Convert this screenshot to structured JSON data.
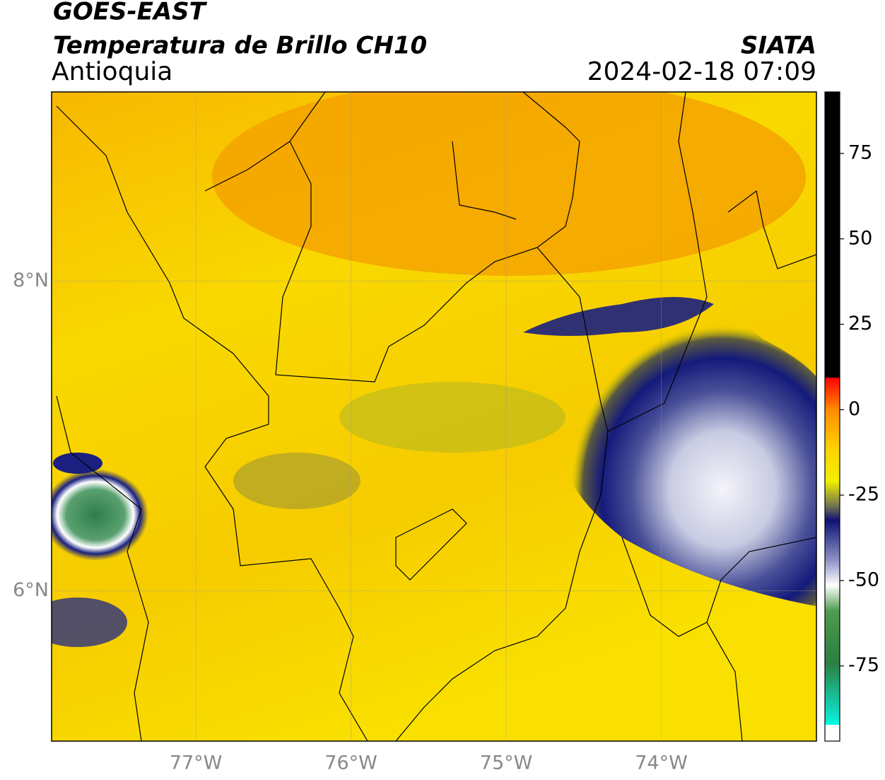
{
  "header": {
    "title": "GOES-EAST",
    "subtitle": "Temperatura de Brillo CH10",
    "region": "Antioquia",
    "source": "SIATA",
    "timestamp": "2024-02-18 07:09"
  },
  "map": {
    "xlim": [
      -77.93,
      -73.0
    ],
    "ylim": [
      5.03,
      9.22
    ],
    "xticks": [
      {
        "value": -77,
        "label": "77°W"
      },
      {
        "value": -76,
        "label": "76°W"
      },
      {
        "value": -75,
        "label": "75°W"
      },
      {
        "value": -74,
        "label": "74°W"
      }
    ],
    "yticks": [
      {
        "value": 6,
        "label": "6°N"
      },
      {
        "value": 8,
        "label": "8°N"
      }
    ],
    "grid": true
  },
  "colorbar": {
    "lim": [
      -97,
      93
    ],
    "ticks": [
      -75,
      -50,
      -25,
      0,
      25,
      50,
      75
    ]
  }
}
